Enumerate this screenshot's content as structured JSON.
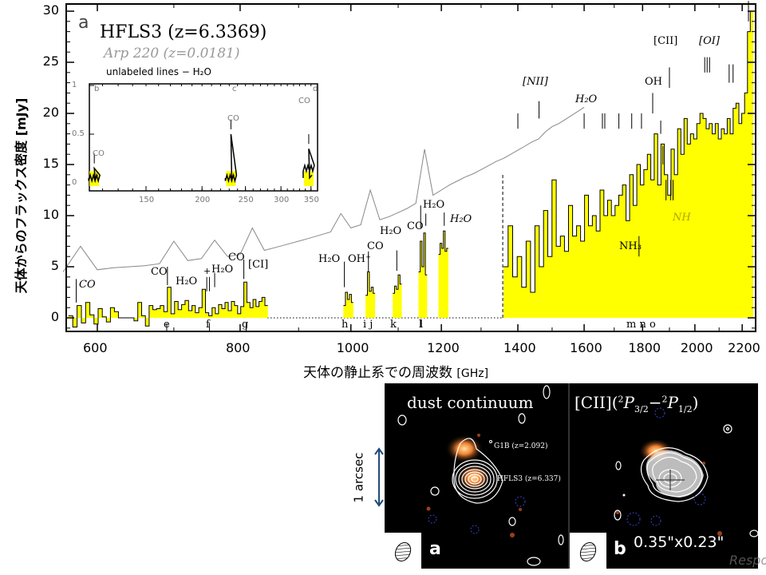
{
  "figure": {
    "panel_letter": "a",
    "legend_hfls3": "HFLS3 (z=6.3369)",
    "legend_arp220": "Arp 220 (z=0.0181)",
    "legend_unlabeled": "unlabeled lines − H₂O"
  },
  "colors": {
    "fill": "#ffff00",
    "hfls3_line": "#000000",
    "arp220_line": "#888888",
    "nh_label": "#b8a000"
  },
  "chart_data": {
    "type": "line",
    "title": "",
    "xlabel": "天体の静止系での周波数",
    "xlabel_unit": "[GHz]",
    "ylabel": "天体からのフラックス密度 [mJy]",
    "xscale": "log",
    "xlim": [
      563,
      2256
    ],
    "ylim": [
      -1.3,
      30.7
    ],
    "xticks": [
      600,
      800,
      1000,
      1200,
      1400,
      1600,
      1800,
      2000,
      2200
    ],
    "yticks": [
      0,
      5,
      10,
      15,
      20,
      25,
      30
    ],
    "series": [
      {
        "name": "HFLS3 (z=6.3369)",
        "style": "step-filled",
        "segments": [
          {
            "x0": 566,
            "step": 5,
            "values": [
              0.2,
              -0.9,
              1.2,
              -0.5,
              1.5,
              0.3,
              -0.6,
              0.9,
              0.1,
              -0.4,
              1.0,
              0.6,
              0.0,
              0.0,
              0.0,
              0.0,
              -0.3,
              1.5,
              0.2,
              -0.8,
              1.2,
              0.8,
              0.9,
              1.2,
              0.6,
              3.0,
              0.4,
              1.6,
              0.8,
              1.3,
              1.7,
              0.7,
              1.2,
              0.5,
              1.0,
              2.8,
              0.5,
              0.2,
              1.0,
              0.4,
              1.3,
              0.9,
              1.5,
              0.7,
              1.6,
              1.2,
              0.4,
              1.1,
              3.5,
              1.5,
              1.0,
              1.8,
              1.1,
              1.6,
              2.0,
              1.2
            ]
          },
          {
            "x0": 985,
            "step": 4,
            "values": [
              1.2,
              2.5,
              1.8,
              2.3,
              1.5
            ]
          },
          {
            "x0": 1030,
            "step": 4,
            "values": [
              2.2,
              4.5,
              2.6,
              3.0,
              2.4
            ]
          },
          {
            "x0": 1088,
            "step": 4,
            "values": [
              2.4,
              3.1,
              2.8,
              4.2,
              3.3
            ]
          },
          {
            "x0": 1146,
            "step": 4,
            "values": [
              4.5,
              7.5,
              5.0,
              8.3,
              4.2
            ]
          },
          {
            "x0": 1193,
            "step": 4,
            "values": [
              6.2,
              7.3,
              6.8,
              8.5,
              6.5,
              6.8
            ]
          },
          {
            "x0": 1360,
            "step": 12.7,
            "values": [
              5,
              9,
              4,
              6,
              3,
              7.5,
              2.5,
              9,
              5,
              10.5,
              6,
              13.5,
              7,
              8,
              6.5,
              11,
              8,
              9,
              7.5,
              12,
              9,
              10,
              8.5,
              12.5,
              10,
              11.5,
              10,
              11,
              12,
              13,
              9.5,
              14,
              11,
              15,
              13,
              14.5,
              16,
              13.5,
              18,
              13,
              17,
              14,
              12,
              16.5,
              14,
              18.5,
              16,
              19.5,
              17,
              18,
              17.5,
              19,
              20,
              19.5,
              18.5,
              19,
              18,
              19,
              17.5,
              18.5,
              18,
              19.5,
              18,
              20.5,
              21,
              19,
              20,
              22,
              28,
              30
            ]
          }
        ]
      },
      {
        "name": "Arp 220 (z=0.0181)",
        "style": "line",
        "x0": 560,
        "step": 20,
        "values": [
          4.5,
          7.0,
          4.7,
          4.9,
          5.0,
          5.1,
          5.3,
          7.5,
          5.6,
          5.8,
          7.6,
          6.0,
          6.2,
          8.8,
          6.6,
          6.9,
          7.2,
          7.5,
          7.8,
          8.1,
          8.4,
          10.2,
          8.8,
          9.1,
          12.5,
          9.6,
          9.9,
          10.3,
          10.7,
          11.2,
          16.5,
          12.0,
          12.5,
          13.0,
          13.4,
          13.8,
          14.1,
          14.5,
          14.9,
          15.3,
          15.6,
          16.0,
          16.4,
          16.8,
          17.2,
          17.5,
          18.2,
          18.7,
          19.0,
          19.4,
          19.8,
          20.2,
          20.6
        ]
      }
    ],
    "line_labels": {
      "co_570": "CO",
      "co_690": "CO",
      "h2o_740": "H₂O",
      "plus_752": "+",
      "h2o_760": "H₂O",
      "co_806": "CO",
      "ci": "[CI]",
      "h2o_987": "H₂O",
      "ohp": "OH⁺",
      "co_1036": "CO",
      "h2o_1097": "H₂O",
      "co_1151": "CO",
      "h2o_1163": "H₂O",
      "h2o_1207": "H₂O",
      "nii": "[NII]",
      "h2o_1600": "H₂O",
      "oh": "OH",
      "cii": "[CII]",
      "oi": "[OI]",
      "nh3": "NH₃",
      "nh": "NH"
    },
    "window_labels": {
      "e": "e",
      "f": "f",
      "g": "g",
      "h": "h",
      "ij": "i j",
      "k": "k",
      "l": "l",
      "mno": "m  n  o"
    },
    "inset": {
      "type": "line",
      "xscale": "log",
      "xlim": [
        112,
        360
      ],
      "ylim": [
        -0.05,
        1
      ],
      "xticks": [
        150,
        200,
        250,
        300,
        350
      ],
      "yticks": [
        0,
        0.5,
        1
      ],
      "panel_labels": [
        "b",
        "c",
        "d"
      ],
      "line_labels": [
        "CO",
        "CO",
        "CO"
      ],
      "spikes": [
        {
          "x": 115,
          "y": 0.15
        },
        {
          "x": 232,
          "y": 0.5
        },
        {
          "x": 346,
          "y": 0.35
        }
      ]
    }
  },
  "images": {
    "left_title": "dust continuum",
    "right_title_main": "[CII](",
    "right_title_sup1": "2",
    "right_title_p1": "P",
    "right_title_sub1": "3/2",
    "right_title_dash": "−",
    "right_title_sup2": "2",
    "right_title_p2": "P",
    "right_title_sub2": "1/2",
    "right_title_close": ")",
    "g1b_label": "G1B (z=2.092)",
    "hfls3_label": "HFLS3 (z=6.337)",
    "panel_a": "a",
    "panel_b": "b",
    "beam_size": "0.35\"x0.23\"",
    "scale_label": "1 arcsec",
    "watermark": "Response"
  }
}
